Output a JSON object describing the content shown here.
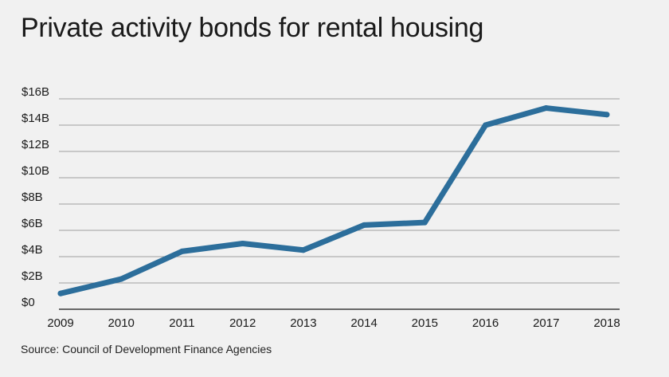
{
  "colors": {
    "background": "#f1f1f1",
    "line": "#2c6e9b",
    "grid": "#9e9e9e",
    "axis": "#3a3a3a",
    "text": "#1a1a1a"
  },
  "chart_data": {
    "type": "line",
    "title": "Private activity bonds for rental housing",
    "source": "Source: Council of Development Finance Agencies",
    "xlabel": "",
    "ylabel": "",
    "categories": [
      "2009",
      "2010",
      "2011",
      "2012",
      "2013",
      "2014",
      "2015",
      "2016",
      "2017",
      "2018"
    ],
    "series": [
      {
        "values": [
          1.2,
          2.3,
          4.4,
          5.0,
          4.5,
          6.4,
          6.6,
          14.0,
          15.3,
          14.8
        ]
      }
    ],
    "ylim": [
      0,
      16
    ],
    "yticks": [
      0,
      2,
      4,
      6,
      8,
      10,
      12,
      14,
      16
    ],
    "ytick_labels": [
      "$0",
      "$2B",
      "$4B",
      "$6B",
      "$8B",
      "$10B",
      "$12B",
      "$14B",
      "$16B"
    ],
    "grid": true,
    "legend": "none"
  }
}
